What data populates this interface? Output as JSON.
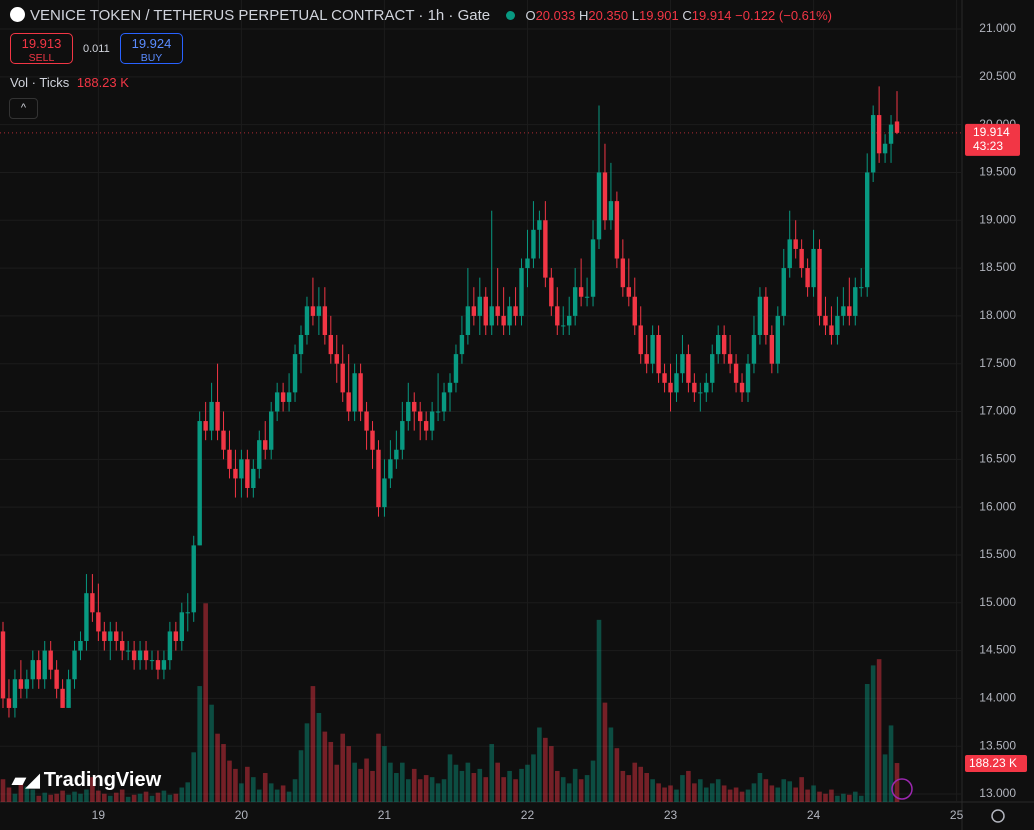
{
  "chart_data": {
    "type": "candlestick",
    "title": "VENICE TOKEN / TETHERUS PERPETUAL CONTRACT · 1h · Gate",
    "legend": {
      "open_label": "O",
      "open": "20.033",
      "high_label": "H",
      "high": "20.350",
      "low_label": "L",
      "low": "19.901",
      "close_label": "C",
      "close": "19.914",
      "change": "−0.122 (−0.61%)"
    },
    "trade": {
      "sell_price": "19.913",
      "sell": "SELL",
      "spread": "0.011",
      "buy_price": "19.924",
      "buy": "BUY"
    },
    "volume_title": "Vol · Ticks",
    "volume_last": "188.23 K",
    "price_tag": "19.914",
    "countdown": "43:23",
    "volume_tag": "188.23 K",
    "brand": "TradingView",
    "up_color": "#089981",
    "down_color": "#f23645",
    "ylim": [
      13,
      21
    ],
    "yticks": [
      {
        "value": 13,
        "label": "13.000"
      },
      {
        "value": 13.5,
        "label": "13.500"
      },
      {
        "value": 14,
        "label": "14.000"
      },
      {
        "value": 14.5,
        "label": "14.500"
      },
      {
        "value": 15,
        "label": "15.000"
      },
      {
        "value": 15.5,
        "label": "15.500"
      },
      {
        "value": 16,
        "label": "16.000"
      },
      {
        "value": 16.5,
        "label": "16.500"
      },
      {
        "value": 17,
        "label": "17.000"
      },
      {
        "value": 17.5,
        "label": "17.500"
      },
      {
        "value": 18,
        "label": "18.000"
      },
      {
        "value": 18.5,
        "label": "18.500"
      },
      {
        "value": 19,
        "label": "19.000"
      },
      {
        "value": 19.5,
        "label": "19.500"
      },
      {
        "value": 20,
        "label": "20.000"
      },
      {
        "value": 20.5,
        "label": "20.500"
      },
      {
        "value": 21,
        "label": "21.000"
      }
    ],
    "xticks": [
      {
        "value": 16,
        "label": "19"
      },
      {
        "value": 40,
        "label": "20"
      },
      {
        "value": 64,
        "label": "21"
      },
      {
        "value": 88,
        "label": "22"
      },
      {
        "value": 112,
        "label": "23"
      },
      {
        "value": 136,
        "label": "24"
      },
      {
        "value": 160,
        "label": "25"
      }
    ],
    "grid": true,
    "candles": [
      [
        14.7,
        14.8,
        13.9,
        14.0,
        110
      ],
      [
        14.0,
        14.2,
        13.8,
        13.9,
        70
      ],
      [
        13.9,
        14.3,
        13.8,
        14.2,
        40
      ],
      [
        14.2,
        14.4,
        14.0,
        14.1,
        90
      ],
      [
        14.1,
        14.3,
        14.0,
        14.2,
        75
      ],
      [
        14.2,
        14.5,
        14.1,
        14.4,
        60
      ],
      [
        14.4,
        14.5,
        14.1,
        14.2,
        30
      ],
      [
        14.2,
        14.6,
        14.1,
        14.5,
        45
      ],
      [
        14.5,
        14.6,
        14.2,
        14.3,
        35
      ],
      [
        14.3,
        14.4,
        14.0,
        14.1,
        40
      ],
      [
        14.1,
        14.2,
        13.9,
        13.9,
        55
      ],
      [
        13.9,
        14.3,
        13.9,
        14.2,
        35
      ],
      [
        14.2,
        14.6,
        14.1,
        14.5,
        50
      ],
      [
        14.5,
        14.7,
        14.4,
        14.6,
        40
      ],
      [
        14.6,
        15.3,
        14.5,
        15.1,
        60
      ],
      [
        15.1,
        15.3,
        14.8,
        14.9,
        120
      ],
      [
        14.9,
        15.2,
        14.6,
        14.7,
        55
      ],
      [
        14.7,
        14.8,
        14.5,
        14.6,
        40
      ],
      [
        14.6,
        14.8,
        14.4,
        14.7,
        30
      ],
      [
        14.7,
        14.8,
        14.5,
        14.6,
        45
      ],
      [
        14.6,
        14.7,
        14.4,
        14.5,
        60
      ],
      [
        14.5,
        14.6,
        14.4,
        14.5,
        25
      ],
      [
        14.5,
        14.6,
        14.3,
        14.4,
        35
      ],
      [
        14.4,
        14.6,
        14.3,
        14.5,
        40
      ],
      [
        14.5,
        14.6,
        14.3,
        14.4,
        50
      ],
      [
        14.4,
        14.5,
        14.3,
        14.4,
        30
      ],
      [
        14.4,
        14.5,
        14.2,
        14.3,
        45
      ],
      [
        14.3,
        14.5,
        14.2,
        14.4,
        55
      ],
      [
        14.4,
        14.8,
        14.3,
        14.7,
        35
      ],
      [
        14.7,
        14.8,
        14.5,
        14.6,
        40
      ],
      [
        14.6,
        15.0,
        14.5,
        14.9,
        70
      ],
      [
        14.9,
        15.1,
        14.7,
        14.9,
        95
      ],
      [
        14.9,
        15.7,
        14.8,
        15.6,
        240
      ],
      [
        15.6,
        17.0,
        15.6,
        16.9,
        560
      ],
      [
        16.9,
        17.1,
        16.7,
        16.8,
        960
      ],
      [
        16.8,
        17.3,
        16.7,
        17.1,
        470
      ],
      [
        17.1,
        17.5,
        16.7,
        16.8,
        330
      ],
      [
        16.8,
        17.0,
        16.5,
        16.6,
        280
      ],
      [
        16.6,
        16.8,
        16.3,
        16.4,
        200
      ],
      [
        16.4,
        16.6,
        16.1,
        16.3,
        160
      ],
      [
        16.3,
        16.6,
        16.1,
        16.5,
        90
      ],
      [
        16.5,
        16.6,
        16.1,
        16.2,
        170
      ],
      [
        16.2,
        16.5,
        16.1,
        16.4,
        120
      ],
      [
        16.4,
        16.8,
        16.3,
        16.7,
        60
      ],
      [
        16.7,
        16.9,
        16.5,
        16.6,
        140
      ],
      [
        16.6,
        17.1,
        16.5,
        17.0,
        90
      ],
      [
        17.0,
        17.3,
        16.9,
        17.2,
        60
      ],
      [
        17.2,
        17.3,
        17.0,
        17.1,
        80
      ],
      [
        17.1,
        17.4,
        17.0,
        17.2,
        50
      ],
      [
        17.2,
        17.7,
        17.1,
        17.6,
        110
      ],
      [
        17.6,
        17.9,
        17.4,
        17.8,
        250
      ],
      [
        17.8,
        18.2,
        17.7,
        18.1,
        380
      ],
      [
        18.1,
        18.4,
        17.9,
        18.0,
        560
      ],
      [
        18.0,
        18.3,
        17.8,
        18.1,
        430
      ],
      [
        18.1,
        18.3,
        17.7,
        17.8,
        340
      ],
      [
        17.8,
        18.0,
        17.5,
        17.6,
        290
      ],
      [
        17.6,
        17.8,
        17.3,
        17.5,
        180
      ],
      [
        17.5,
        17.7,
        17.1,
        17.2,
        330
      ],
      [
        17.2,
        17.6,
        16.9,
        17.0,
        270
      ],
      [
        17.0,
        17.5,
        16.9,
        17.4,
        190
      ],
      [
        17.4,
        17.5,
        16.9,
        17.0,
        160
      ],
      [
        17.0,
        17.1,
        16.6,
        16.8,
        210
      ],
      [
        16.8,
        16.9,
        16.4,
        16.6,
        150
      ],
      [
        16.6,
        16.7,
        15.9,
        16.0,
        330
      ],
      [
        16.0,
        16.5,
        15.9,
        16.3,
        270
      ],
      [
        16.3,
        16.7,
        16.2,
        16.5,
        190
      ],
      [
        16.5,
        16.8,
        16.4,
        16.6,
        140
      ],
      [
        16.6,
        17.1,
        16.5,
        16.9,
        190
      ],
      [
        16.9,
        17.3,
        16.8,
        17.1,
        110
      ],
      [
        17.1,
        17.2,
        16.8,
        17.0,
        160
      ],
      [
        17.0,
        17.1,
        16.7,
        16.9,
        110
      ],
      [
        16.9,
        17.0,
        16.7,
        16.8,
        130
      ],
      [
        16.8,
        17.1,
        16.7,
        17.0,
        120
      ],
      [
        17.0,
        17.4,
        16.9,
        17.0,
        90
      ],
      [
        17.0,
        17.3,
        16.9,
        17.2,
        110
      ],
      [
        17.2,
        17.4,
        17.0,
        17.3,
        230
      ],
      [
        17.3,
        17.7,
        17.2,
        17.6,
        180
      ],
      [
        17.6,
        18.0,
        17.5,
        17.8,
        150
      ],
      [
        17.8,
        18.5,
        17.7,
        18.1,
        190
      ],
      [
        18.1,
        18.3,
        17.9,
        18.0,
        140
      ],
      [
        18.0,
        18.4,
        17.8,
        18.2,
        160
      ],
      [
        18.2,
        18.3,
        17.8,
        17.9,
        120
      ],
      [
        17.9,
        19.1,
        17.8,
        18.1,
        280
      ],
      [
        18.1,
        18.5,
        17.9,
        18.0,
        190
      ],
      [
        18.0,
        18.3,
        17.8,
        17.9,
        120
      ],
      [
        17.9,
        18.2,
        17.8,
        18.1,
        150
      ],
      [
        18.1,
        18.3,
        17.9,
        18.0,
        110
      ],
      [
        18.0,
        18.6,
        17.9,
        18.5,
        160
      ],
      [
        18.5,
        18.9,
        18.3,
        18.6,
        180
      ],
      [
        18.6,
        19.2,
        18.5,
        18.9,
        230
      ],
      [
        18.9,
        19.1,
        18.6,
        19.0,
        360
      ],
      [
        19.0,
        19.2,
        18.3,
        18.4,
        310
      ],
      [
        18.4,
        18.5,
        18.0,
        18.1,
        270
      ],
      [
        18.1,
        18.3,
        17.8,
        17.9,
        150
      ],
      [
        17.9,
        18.1,
        17.8,
        17.9,
        120
      ],
      [
        17.9,
        18.2,
        17.8,
        18.0,
        90
      ],
      [
        18.0,
        18.5,
        17.9,
        18.3,
        160
      ],
      [
        18.3,
        18.6,
        18.1,
        18.2,
        110
      ],
      [
        18.2,
        18.4,
        18.1,
        18.2,
        130
      ],
      [
        18.2,
        19.0,
        18.1,
        18.8,
        200
      ],
      [
        18.8,
        20.2,
        18.7,
        19.5,
        880
      ],
      [
        19.5,
        19.8,
        18.9,
        19.0,
        480
      ],
      [
        19.0,
        19.6,
        18.9,
        19.2,
        360
      ],
      [
        19.2,
        19.3,
        18.5,
        18.6,
        260
      ],
      [
        18.6,
        18.8,
        18.2,
        18.3,
        150
      ],
      [
        18.3,
        18.6,
        18.1,
        18.2,
        130
      ],
      [
        18.2,
        18.4,
        17.8,
        17.9,
        190
      ],
      [
        17.9,
        18.1,
        17.5,
        17.6,
        170
      ],
      [
        17.6,
        17.8,
        17.4,
        17.5,
        140
      ],
      [
        17.5,
        17.9,
        17.4,
        17.8,
        110
      ],
      [
        17.8,
        17.9,
        17.3,
        17.4,
        90
      ],
      [
        17.4,
        17.5,
        17.2,
        17.3,
        70
      ],
      [
        17.3,
        17.5,
        17.0,
        17.2,
        80
      ],
      [
        17.2,
        17.6,
        17.1,
        17.4,
        60
      ],
      [
        17.4,
        17.8,
        17.3,
        17.6,
        130
      ],
      [
        17.6,
        17.7,
        17.2,
        17.3,
        150
      ],
      [
        17.3,
        17.4,
        17.1,
        17.2,
        90
      ],
      [
        17.2,
        17.3,
        17.0,
        17.2,
        110
      ],
      [
        17.2,
        17.4,
        17.1,
        17.3,
        70
      ],
      [
        17.3,
        17.7,
        17.2,
        17.6,
        90
      ],
      [
        17.6,
        17.9,
        17.5,
        17.8,
        110
      ],
      [
        17.8,
        17.9,
        17.5,
        17.6,
        80
      ],
      [
        17.6,
        17.8,
        17.4,
        17.5,
        60
      ],
      [
        17.5,
        17.6,
        17.2,
        17.3,
        70
      ],
      [
        17.3,
        17.4,
        17.1,
        17.2,
        50
      ],
      [
        17.2,
        17.6,
        17.1,
        17.5,
        60
      ],
      [
        17.5,
        18.0,
        17.4,
        17.8,
        90
      ],
      [
        17.8,
        18.3,
        17.7,
        18.2,
        140
      ],
      [
        18.2,
        18.3,
        17.7,
        17.8,
        110
      ],
      [
        17.8,
        17.9,
        17.4,
        17.5,
        80
      ],
      [
        17.5,
        18.1,
        17.4,
        18.0,
        70
      ],
      [
        18.0,
        18.7,
        17.9,
        18.5,
        110
      ],
      [
        18.5,
        19.1,
        18.4,
        18.8,
        100
      ],
      [
        18.8,
        19.0,
        18.6,
        18.7,
        70
      ],
      [
        18.7,
        18.8,
        18.4,
        18.5,
        120
      ],
      [
        18.5,
        18.6,
        18.2,
        18.3,
        60
      ],
      [
        18.3,
        18.9,
        18.2,
        18.7,
        80
      ],
      [
        18.7,
        18.8,
        17.9,
        18.0,
        50
      ],
      [
        18.0,
        18.2,
        17.8,
        17.9,
        40
      ],
      [
        17.9,
        18.1,
        17.7,
        17.8,
        60
      ],
      [
        17.8,
        18.2,
        17.7,
        18.0,
        30
      ],
      [
        18.0,
        18.3,
        17.9,
        18.1,
        40
      ],
      [
        18.1,
        18.4,
        17.9,
        18.0,
        35
      ],
      [
        18.0,
        18.4,
        17.9,
        18.3,
        50
      ],
      [
        18.3,
        18.5,
        18.2,
        18.3,
        30
      ],
      [
        18.3,
        19.7,
        18.2,
        19.5,
        570
      ],
      [
        19.5,
        20.2,
        19.4,
        20.1,
        660
      ],
      [
        20.1,
        20.4,
        19.6,
        19.7,
        690
      ],
      [
        19.7,
        19.9,
        19.6,
        19.8,
        230
      ],
      [
        19.8,
        20.1,
        19.6,
        20.0,
        370
      ],
      [
        20.033,
        20.35,
        19.901,
        19.914,
        188.23
      ]
    ]
  }
}
